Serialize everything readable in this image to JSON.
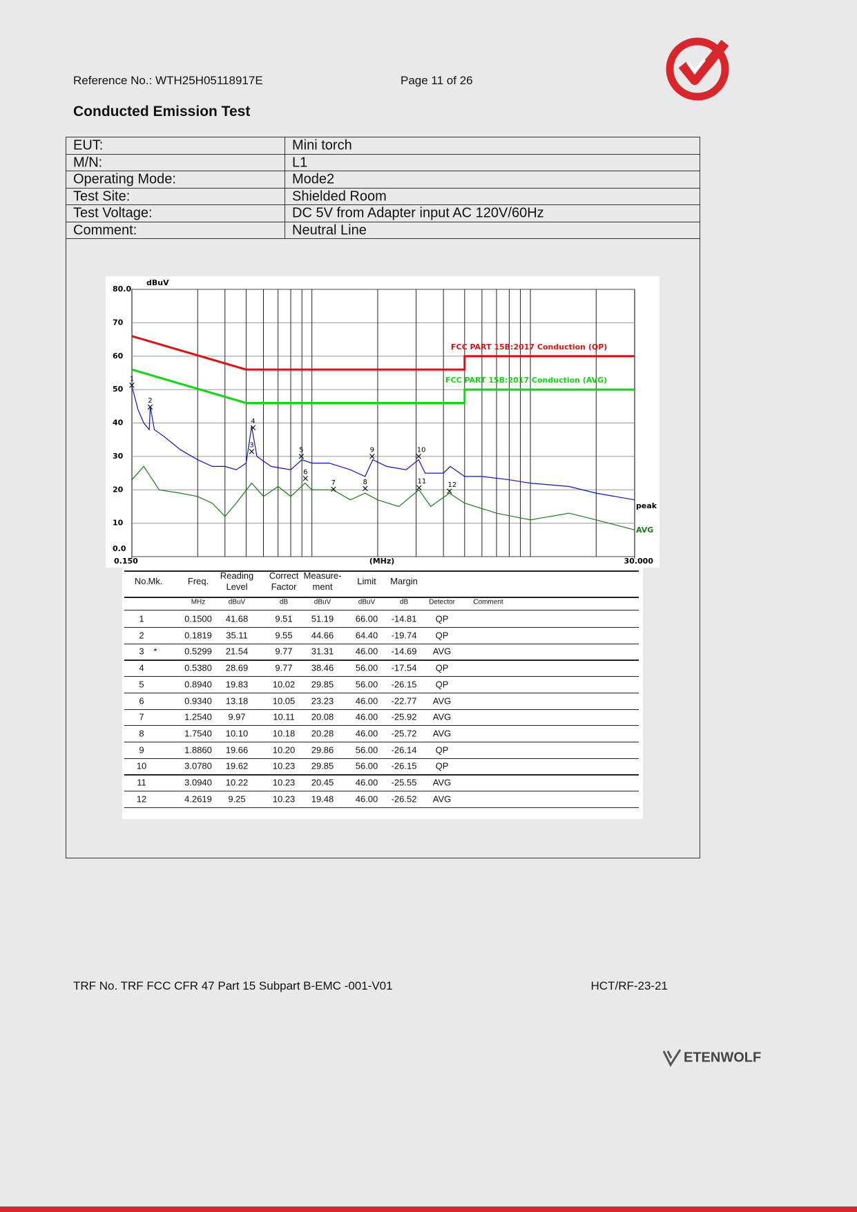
{
  "header": {
    "reference": "Reference No.: WTH25H05118917E",
    "page": "Page 11 of 26"
  },
  "title": "Conducted Emission Test",
  "info": [
    [
      "EUT:",
      "Mini torch"
    ],
    [
      "M/N:",
      "L1"
    ],
    [
      "Operating Mode:",
      "Mode2"
    ],
    [
      "Test Site:",
      "Shielded Room"
    ],
    [
      "Test Voltage:",
      "DC 5V from Adapter input AC 120V/60Hz"
    ],
    [
      "Comment:",
      "Neutral Line"
    ]
  ],
  "chart_data": {
    "type": "line",
    "y_unit": "dBuV",
    "x_unit": "(MHz)",
    "xscale": "log",
    "xlim": [
      0.15,
      30
    ],
    "xticks": [
      {
        "value": 0.15,
        "label": "0.150"
      },
      {
        "value": 30,
        "label": "30.000"
      }
    ],
    "xgrid": [
      0.3,
      0.4,
      0.5,
      0.6,
      0.7,
      0.8,
      0.9,
      1,
      2,
      3,
      4,
      5,
      6,
      7,
      8,
      9,
      10,
      20
    ],
    "ylim": [
      0,
      80
    ],
    "yticks": [
      {
        "value": 0,
        "label": "0.0"
      },
      10,
      20,
      30,
      40,
      50,
      60,
      70,
      {
        "value": 80,
        "label": "80.0"
      }
    ],
    "grid": true,
    "series": [
      {
        "name": "FCC PART 15B:2017 Conduction (QP)",
        "color": "#e01010",
        "x": [
          0.15,
          0.5,
          5,
          5,
          30
        ],
        "values": [
          66,
          56,
          56,
          60,
          60
        ]
      },
      {
        "name": "FCC PART 15B:2017 Conduction (AVG)",
        "color": "#10d810",
        "x": [
          0.15,
          0.5,
          5,
          5,
          30
        ],
        "values": [
          56,
          46,
          46,
          50,
          50
        ]
      },
      {
        "name": "peak",
        "color": "#1010c8",
        "x": [
          0.15,
          0.16,
          0.17,
          0.18,
          0.182,
          0.19,
          0.21,
          0.25,
          0.3,
          0.35,
          0.4,
          0.45,
          0.5,
          0.53,
          0.56,
          0.65,
          0.8,
          0.9,
          1,
          1.2,
          1.5,
          1.75,
          1.9,
          2.2,
          2.7,
          3.08,
          3.3,
          4,
          4.3,
          5,
          6,
          8,
          10,
          15,
          20,
          30
        ],
        "values": [
          51,
          44,
          40,
          38,
          45,
          38,
          36,
          32,
          29,
          27,
          27,
          26,
          28,
          39,
          30,
          27,
          26,
          29,
          28,
          28,
          26,
          24,
          29,
          27,
          26,
          29,
          25,
          25,
          27,
          24,
          24,
          23,
          22,
          21,
          19,
          17
        ]
      },
      {
        "name": "AVG",
        "color": "#1a7a1a",
        "x": [
          0.15,
          0.17,
          0.2,
          0.25,
          0.3,
          0.35,
          0.4,
          0.45,
          0.53,
          0.6,
          0.7,
          0.8,
          0.93,
          1,
          1.25,
          1.5,
          1.75,
          2,
          2.5,
          3.09,
          3.5,
          4.26,
          5,
          7,
          10,
          15,
          20,
          30
        ],
        "values": [
          23,
          27,
          20,
          19,
          18,
          16,
          12,
          16,
          22,
          18,
          21,
          18,
          22,
          20,
          20,
          17,
          19,
          17,
          15,
          20,
          15,
          19,
          16,
          13,
          11,
          13,
          11,
          8
        ]
      }
    ]
  },
  "results": {
    "columns": [
      "No.",
      "Mk.",
      "Freq.",
      "Reading Level",
      "Correct Factor",
      "Measure-ment",
      "Limit",
      "Margin",
      null,
      null
    ],
    "units": [
      null,
      null,
      "MHz",
      "dBuV",
      "dB",
      "dBuV",
      "dBuV",
      "dB",
      "Detector",
      "Comment"
    ],
    "rows": [
      [
        "1",
        null,
        "0.1500",
        "41.68",
        "9.51",
        "51.19",
        "66.00",
        "-14.81",
        "QP",
        null
      ],
      [
        "2",
        null,
        "0.1819",
        "35.11",
        "9.55",
        "44.66",
        "64.40",
        "-19.74",
        "QP",
        null
      ],
      [
        "3",
        "*",
        "0.5299",
        "21.54",
        "9.77",
        "31.31",
        "46.00",
        "-14.69",
        "AVG",
        null
      ],
      [
        "4",
        null,
        "0.5380",
        "28.69",
        "9.77",
        "38.46",
        "56.00",
        "-17.54",
        "QP",
        null
      ],
      [
        "5",
        null,
        "0.8940",
        "19.83",
        "10.02",
        "29.85",
        "56.00",
        "-26.15",
        "QP",
        null
      ],
      [
        "6",
        null,
        "0.9340",
        "13.18",
        "10.05",
        "23.23",
        "46.00",
        "-22.77",
        "AVG",
        null
      ],
      [
        "7",
        null,
        "1.2540",
        "9.97",
        "10.11",
        "20.08",
        "46.00",
        "-25.92",
        "AVG",
        null
      ],
      [
        "8",
        null,
        "1.7540",
        "10.10",
        "10.18",
        "20.28",
        "46.00",
        "-25.72",
        "AVG",
        null
      ],
      [
        "9",
        null,
        "1.8860",
        "19.66",
        "10.20",
        "29.86",
        "56.00",
        "-26.14",
        "QP",
        null
      ],
      [
        "10",
        null,
        "3.0780",
        "19.62",
        "10.23",
        "29.85",
        "56.00",
        "-26.15",
        "QP",
        null
      ],
      [
        "11",
        null,
        "3.0940",
        "10.22",
        "10.23",
        "20.45",
        "46.00",
        "-25.55",
        "AVG",
        null
      ],
      [
        "12",
        null,
        "4.2619",
        "9.25",
        "10.23",
        "19.48",
        "46.00",
        "-26.52",
        "AVG",
        null
      ]
    ]
  },
  "footer": {
    "trf": "TRF No. TRF FCC CFR 47 Part 15 Subpart B-EMC -001-V01",
    "code": "HCT/RF-23-21",
    "brand": "ETENWOLF"
  }
}
